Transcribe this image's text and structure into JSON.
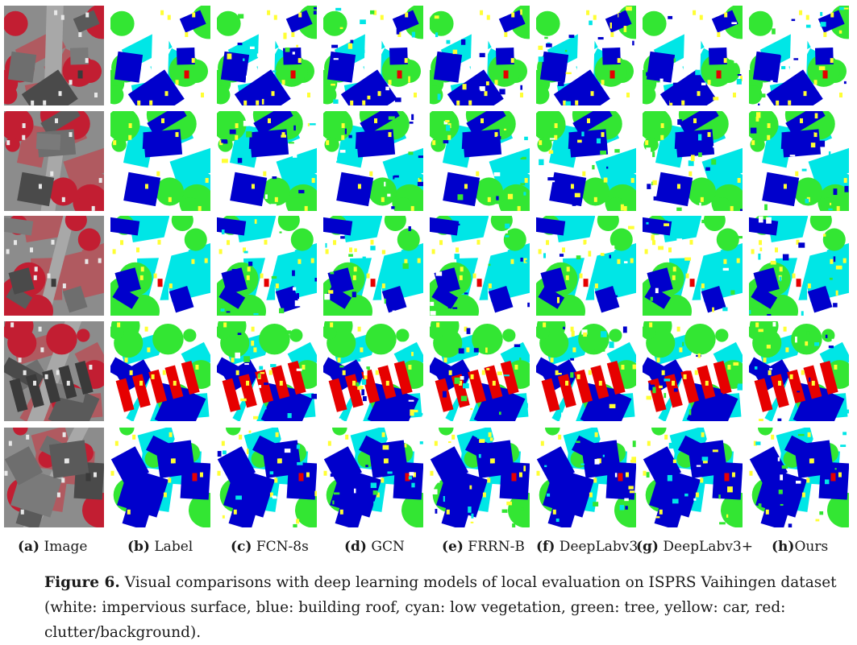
{
  "colors": {
    "impervious": "#ffffff",
    "building": "#0000cc",
    "lowveg": "#00e6e6",
    "tree": "#33e633",
    "car": "#ffff33",
    "clutter": "#e60000"
  },
  "columns": [
    {
      "letter": "(a)",
      "name": " Image"
    },
    {
      "letter": "(b)",
      "name": " Label"
    },
    {
      "letter": "(c)",
      "name": " FCN-8s"
    },
    {
      "letter": "(d)",
      "name": " GCN"
    },
    {
      "letter": "(e)",
      "name": " FRRN-B"
    },
    {
      "letter": "(f)",
      "name": " DeepLabv3"
    },
    {
      "letter": "(g)",
      "name": " DeepLabv3+"
    },
    {
      "letter": "(h)",
      "name": "Ours"
    }
  ],
  "caption": {
    "figure": "Figure 6.",
    "text": "Visual comparisons with deep learning models of local evaluation on ISPRS Vaihingen dataset (white: impervious surface, blue: building roof, cyan: low vegetation, green: tree, yellow: car, red: clutter/background)."
  }
}
